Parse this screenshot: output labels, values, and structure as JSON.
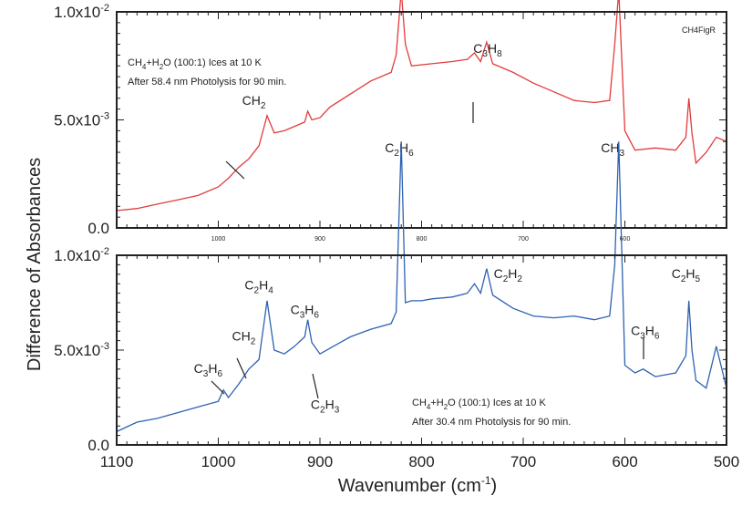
{
  "figure": {
    "tag": "CH4FigR",
    "ylabel": "Difference of Absorbances",
    "xlabel_main": "Wavenumber (cm",
    "xlabel_sup": "-1",
    "xlabel_close": ")",
    "colors": {
      "top": "#e23b3b",
      "bottom": "#2e62b0",
      "frame": "#222222"
    }
  },
  "chart_data": [
    {
      "type": "line",
      "panel": "top",
      "note_line1": {
        "a": "CH",
        "a_sub": "4",
        "b": "+H",
        "b_sub": "2",
        "c": "O (100:1) Ices at 10 K"
      },
      "note_line2": "After 58.4 nm Photolysis for 90 min.",
      "xlim": [
        1100,
        500
      ],
      "ylim": [
        0,
        0.01
      ],
      "yticks": [
        "0.0",
        "5.0x10",
        "1.0x10"
      ],
      "ytick_exp": [
        "",
        "-3",
        "-2"
      ],
      "ytick_values": [
        0,
        0.005,
        0.01
      ],
      "xticks": [
        "1000",
        "900",
        "800",
        "700",
        "600"
      ],
      "xtick_values": [
        1000,
        900,
        800,
        700,
        600
      ],
      "annotations": [
        {
          "main": "CH",
          "sub": "2",
          "x": 965,
          "y": 0.0057
        },
        {
          "main": "C",
          "sub": "3",
          "main2": "H",
          "sub2": "8",
          "x": 735,
          "y": 0.0081
        },
        {
          "main": "C",
          "sub": "2",
          "main2": "H",
          "sub2": "6",
          "x": 822,
          "y": 0.0035
        },
        {
          "main": "CH",
          "sub": "3",
          "x": 612,
          "y": 0.0035
        }
      ],
      "series": [
        {
          "color": "#e23b3b",
          "x": [
            1100,
            1080,
            1060,
            1040,
            1020,
            1000,
            990,
            980,
            970,
            960,
            952,
            945,
            935,
            925,
            915,
            912,
            908,
            900,
            890,
            870,
            850,
            830,
            825,
            820,
            816,
            810,
            790,
            770,
            755,
            748,
            742,
            736,
            730,
            710,
            690,
            670,
            650,
            630,
            615,
            610,
            606,
            600,
            590,
            570,
            550,
            540,
            537,
            534,
            530,
            520,
            510,
            500
          ],
          "values": [
            0.0008,
            0.0009,
            0.0011,
            0.0013,
            0.0015,
            0.0019,
            0.0023,
            0.0028,
            0.0032,
            0.0038,
            0.0052,
            0.0044,
            0.0045,
            0.0047,
            0.0049,
            0.0054,
            0.005,
            0.0051,
            0.0056,
            0.0062,
            0.0068,
            0.0072,
            0.008,
            0.011,
            0.0085,
            0.0075,
            0.0076,
            0.0077,
            0.0078,
            0.0081,
            0.0077,
            0.0086,
            0.0076,
            0.0072,
            0.0067,
            0.0063,
            0.0059,
            0.0058,
            0.0059,
            0.0085,
            0.011,
            0.0045,
            0.0036,
            0.0037,
            0.0036,
            0.0042,
            0.006,
            0.0044,
            0.003,
            0.0035,
            0.0042,
            0.004
          ]
        }
      ]
    },
    {
      "type": "line",
      "panel": "bottom",
      "note_line1": {
        "a": "CH",
        "a_sub": "4",
        "b": "+H",
        "b_sub": "2",
        "c": "O (100:1) Ices at 10 K"
      },
      "note_line2": "After 30.4 nm Photolysis for 90 min.",
      "xlim": [
        1100,
        500
      ],
      "ylim": [
        0,
        0.01
      ],
      "yticks": [
        "0.0",
        "5.0x10",
        "1.0x10"
      ],
      "ytick_exp": [
        "",
        "-3",
        "-2"
      ],
      "ytick_values": [
        0,
        0.005,
        0.01
      ],
      "xticks": [
        "1100",
        "1000",
        "900",
        "800",
        "700",
        "600",
        "500"
      ],
      "xtick_values": [
        1100,
        1000,
        900,
        800,
        700,
        600,
        500
      ],
      "annotations": [
        {
          "main": "C",
          "sub": "3",
          "main2": "H",
          "sub2": "6",
          "x": 1010,
          "y": 0.0038
        },
        {
          "main": "CH",
          "sub": "2",
          "x": 975,
          "y": 0.0055
        },
        {
          "main": "C",
          "sub": "2",
          "main2": "H",
          "sub2": "4",
          "x": 960,
          "y": 0.0082
        },
        {
          "main": "C",
          "sub": "3",
          "main2": "H",
          "sub2": "6",
          "x": 915,
          "y": 0.0069
        },
        {
          "main": "C",
          "sub": "2",
          "main2": "H",
          "sub2": "3",
          "x": 895,
          "y": 0.0019
        },
        {
          "main": "C",
          "sub": "2",
          "main2": "H",
          "sub2": "2",
          "x": 715,
          "y": 0.0088
        },
        {
          "main": "C",
          "sub": "3",
          "main2": "H",
          "sub2": "6",
          "x": 580,
          "y": 0.0058
        },
        {
          "main": "C",
          "sub": "2",
          "main2": "H",
          "sub2": "5",
          "x": 540,
          "y": 0.0088
        }
      ],
      "series": [
        {
          "color": "#2e62b0",
          "x": [
            1100,
            1080,
            1060,
            1040,
            1020,
            1000,
            995,
            990,
            980,
            970,
            960,
            952,
            945,
            935,
            925,
            915,
            912,
            908,
            900,
            890,
            870,
            850,
            830,
            825,
            820,
            816,
            810,
            800,
            790,
            770,
            755,
            748,
            742,
            736,
            730,
            710,
            690,
            670,
            650,
            630,
            615,
            610,
            606,
            600,
            590,
            582,
            570,
            550,
            540,
            537,
            534,
            530,
            520,
            510,
            500
          ],
          "values": [
            0.0007,
            0.0012,
            0.0014,
            0.0017,
            0.002,
            0.0023,
            0.0029,
            0.0025,
            0.0032,
            0.004,
            0.0045,
            0.0076,
            0.005,
            0.0048,
            0.0052,
            0.0057,
            0.0066,
            0.0054,
            0.0048,
            0.0051,
            0.0057,
            0.0061,
            0.0064,
            0.007,
            0.016,
            0.0075,
            0.0076,
            0.0076,
            0.0077,
            0.0078,
            0.008,
            0.0085,
            0.008,
            0.0093,
            0.0079,
            0.0072,
            0.0068,
            0.0067,
            0.0068,
            0.0066,
            0.0068,
            0.0095,
            0.016,
            0.0042,
            0.0038,
            0.004,
            0.0036,
            0.0038,
            0.0047,
            0.0076,
            0.005,
            0.0034,
            0.003,
            0.0052,
            0.003
          ]
        }
      ]
    }
  ]
}
